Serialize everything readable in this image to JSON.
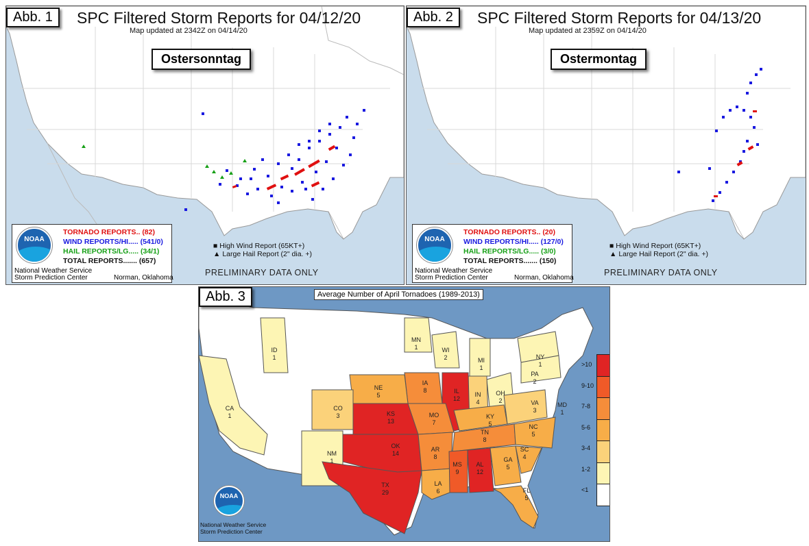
{
  "map1": {
    "badge": "Abb. 1",
    "title": "SPC Filtered Storm Reports for 04/12/20",
    "subtitle": "Map updated at 2342Z on 04/14/20",
    "day_label": "Ostersonntag",
    "legend": {
      "tornado": "TORNADO REPORTS.. (82)",
      "wind": "WIND REPORTS/HI..... (541/0)",
      "hail": "HAIL REPORTS/LG..... (34/1)",
      "total": "TOTAL REPORTS....... (657)",
      "office_line1": "National Weather Service",
      "office_line2": "Storm Prediction Center",
      "location": "Norman, Oklahoma",
      "logo_text": "NOAA"
    },
    "key_wind": "High Wind Report (65KT+)",
    "key_hail": "Large Hail Report (2\" dia. +)",
    "prelim": "PRELIMINARY DATA ONLY"
  },
  "map2": {
    "badge": "Abb. 2",
    "title": "SPC Filtered Storm Reports for 04/13/20",
    "subtitle": "Map updated at 2359Z on 04/14/20",
    "day_label": "Ostermontag",
    "legend": {
      "tornado": "TORNADO REPORTS.. (20)",
      "wind": "WIND REPORTS/HI..... (127/0)",
      "hail": "HAIL REPORTS/LG..... (3/0)",
      "total": "TOTAL REPORTS....... (150)",
      "office_line1": "National Weather Service",
      "office_line2": "Storm Prediction Center",
      "location": "Norman, Oklahoma",
      "logo_text": "NOAA"
    },
    "key_wind": "High Wind Report (65KT+)",
    "key_hail": "Large Hail Report (2\" dia. +)",
    "prelim": "PRELIMINARY DATA ONLY"
  },
  "map3": {
    "badge": "Abb. 3",
    "title": "Average Number of April Tornadoes (1989-2013)",
    "credit_line1": "National Weather Service",
    "credit_line2": "Storm Prediction Center",
    "logo_text": "NOAA",
    "scale_labels": [
      ">10",
      "9-10",
      "7-8",
      "5-6",
      "3-4",
      "1-2",
      "<1"
    ],
    "scale_colors": [
      "#e02424",
      "#f05a28",
      "#f58d3a",
      "#f7ad48",
      "#fbd27a",
      "#fdf5b4",
      "#ffffff"
    ],
    "states": [
      {
        "abbr": "ID",
        "value": "1"
      },
      {
        "abbr": "MN",
        "value": "1"
      },
      {
        "abbr": "WI",
        "value": "2"
      },
      {
        "abbr": "MI",
        "value": "1"
      },
      {
        "abbr": "NY",
        "value": "1"
      },
      {
        "abbr": "PA",
        "value": "2"
      },
      {
        "abbr": "OH",
        "value": "2"
      },
      {
        "abbr": "IN",
        "value": "4"
      },
      {
        "abbr": "IL",
        "value": "12"
      },
      {
        "abbr": "IA",
        "value": "8"
      },
      {
        "abbr": "NE",
        "value": "5"
      },
      {
        "abbr": "CO",
        "value": "3"
      },
      {
        "abbr": "CA",
        "value": "1"
      },
      {
        "abbr": "KS",
        "value": "13"
      },
      {
        "abbr": "MO",
        "value": "7"
      },
      {
        "abbr": "KY",
        "value": "5"
      },
      {
        "abbr": "VA",
        "value": "3"
      },
      {
        "abbr": "MD",
        "value": "1"
      },
      {
        "abbr": "NC",
        "value": "5"
      },
      {
        "abbr": "TN",
        "value": "8"
      },
      {
        "abbr": "OK",
        "value": "14"
      },
      {
        "abbr": "AR",
        "value": "8"
      },
      {
        "abbr": "NM",
        "value": "1"
      },
      {
        "abbr": "SC",
        "value": "4"
      },
      {
        "abbr": "GA",
        "value": "5"
      },
      {
        "abbr": "AL",
        "value": "12"
      },
      {
        "abbr": "MS",
        "value": "9"
      },
      {
        "abbr": "LA",
        "value": "6"
      },
      {
        "abbr": "TX",
        "value": "29"
      },
      {
        "abbr": "FL",
        "value": "5"
      }
    ]
  }
}
